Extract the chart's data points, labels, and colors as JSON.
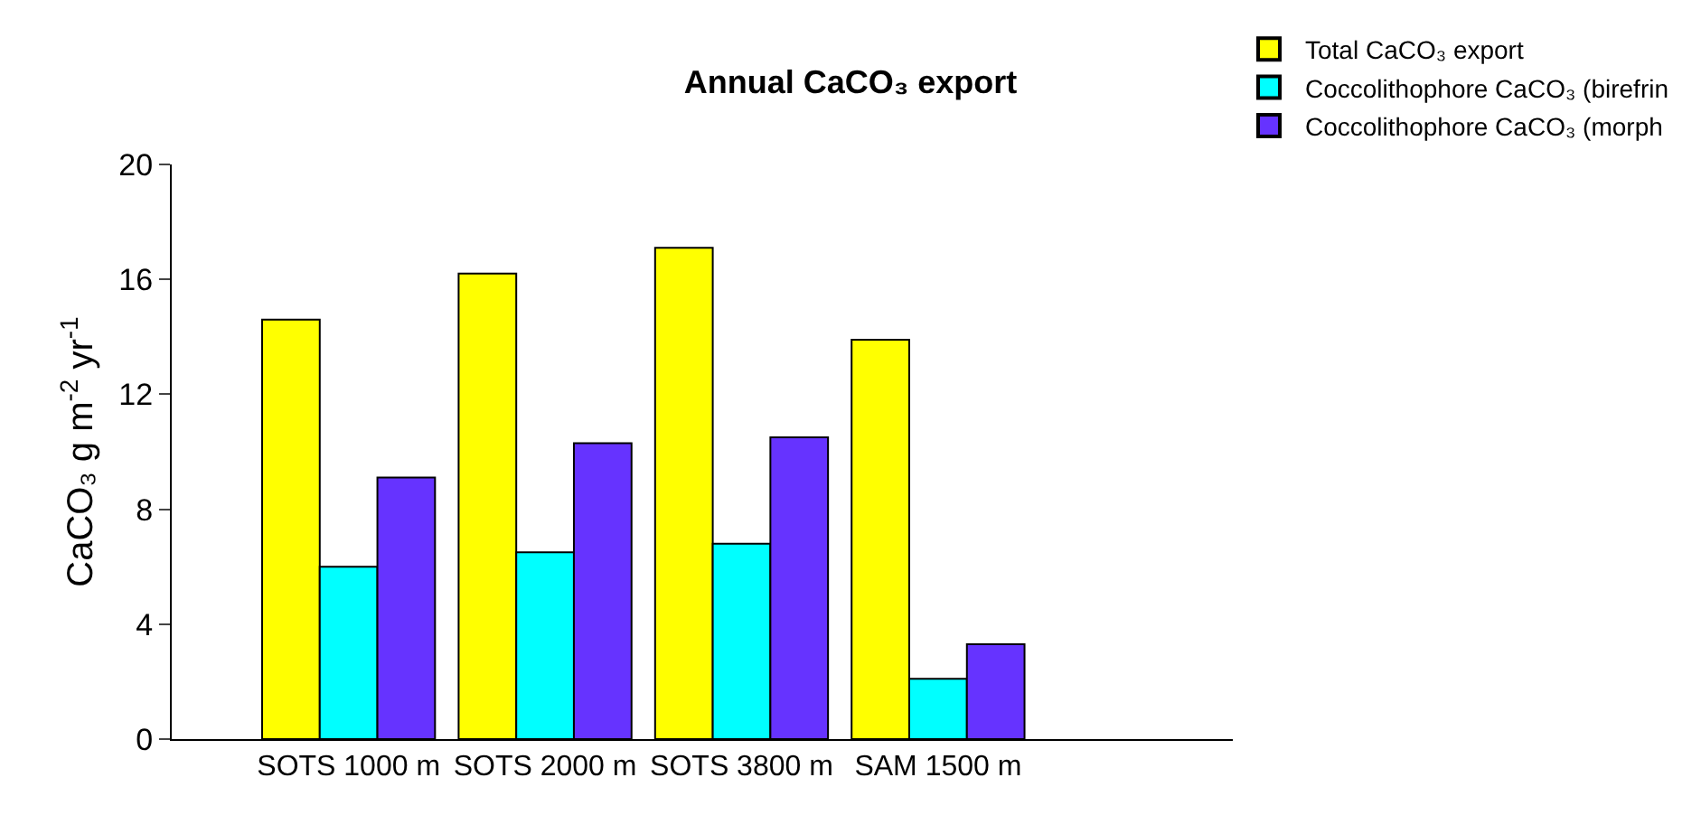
{
  "chart_data": {
    "type": "bar",
    "title": "Annual CaCO₃ export",
    "ylabel": "CaCO₃ g m$^{-2}$ yr$^{-1}$",
    "categories": [
      "SOTS 1000 m",
      "SOTS 2000 m",
      "SOTS 3800 m",
      "SAM 1500 m"
    ],
    "series": [
      {
        "name": "Total CaCO₃ export",
        "color": "#ffff00",
        "values": [
          14.6,
          16.2,
          17.1,
          13.9
        ]
      },
      {
        "name": "Coccolithophore CaCO₃ (birefrin",
        "color": "#00ffff",
        "values": [
          6.0,
          6.5,
          6.8,
          2.1
        ]
      },
      {
        "name": "Coccolithophore CaCO₃ (morph",
        "color": "#6633ff",
        "values": [
          9.1,
          10.3,
          10.5,
          3.3
        ]
      }
    ],
    "ylim": [
      0,
      20
    ],
    "yticks": [
      0,
      4,
      8,
      12,
      16,
      20
    ],
    "legend": "top right"
  }
}
